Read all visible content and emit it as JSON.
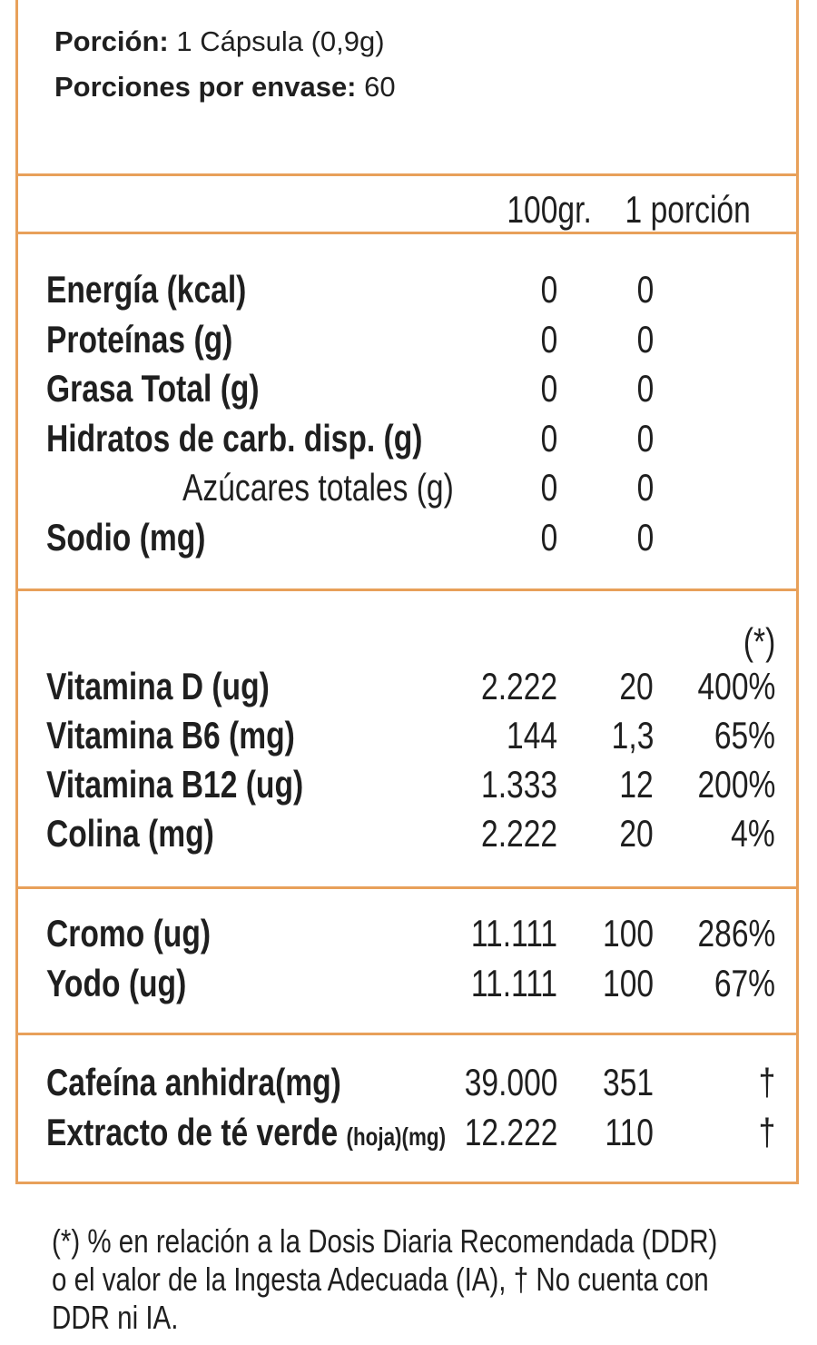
{
  "serving": {
    "portion_label": "Porción:",
    "portion_value": "1 Cápsula (0,9g)",
    "per_container_label": "Porciones por envase:",
    "per_container_value": "60"
  },
  "headers": {
    "col1": "100gr.",
    "col2": "1 porción",
    "col3": "(*)"
  },
  "macros": [
    {
      "label": "Energía (kcal)",
      "v100": "0",
      "vport": "0"
    },
    {
      "label": "Proteínas (g)",
      "v100": "0",
      "vport": "0"
    },
    {
      "label": "Grasa Total (g)",
      "v100": "0",
      "vport": "0"
    },
    {
      "label": "Hidratos de carb. disp. (g)",
      "v100": "0",
      "vport": "0"
    },
    {
      "label": "Azúcares totales (g)",
      "v100": "0",
      "vport": "0"
    },
    {
      "label": "Sodio (mg)",
      "v100": "0",
      "vport": "0"
    }
  ],
  "vitamins": [
    {
      "label": "Vitamina D (ug)",
      "v100": "2.222",
      "vport": "20",
      "pct": "400%"
    },
    {
      "label": "Vitamina B6 (mg)",
      "v100": "144",
      "vport": "1,3",
      "pct": "65%"
    },
    {
      "label": "Vitamina B12 (ug)",
      "v100": "1.333",
      "vport": "12",
      "pct": "200%"
    },
    {
      "label": "Colina (mg)",
      "v100": "2.222",
      "vport": "20",
      "pct": "4%"
    }
  ],
  "minerals": [
    {
      "label": "Cromo (ug)",
      "v100": "11.111",
      "vport": "100",
      "pct": "286%"
    },
    {
      "label": "Yodo (ug)",
      "v100": "11.111",
      "vport": "100",
      "pct": "67%"
    }
  ],
  "others": [
    {
      "label": "Cafeína anhidra(mg)",
      "label_small": "",
      "v100": "39.000",
      "vport": "351",
      "pct": "†"
    },
    {
      "label": "Extracto de té verde ",
      "label_small": "(hoja)(mg)",
      "v100": "12.222",
      "vport": "110",
      "pct": "†"
    }
  ],
  "footnote": {
    "line1": "(*) % en relación a la Dosis Diaria Recomendada (DDR)",
    "line2": "o el valor de la Ingesta Adecuada (IA), † No cuenta con",
    "line3": "DDR ni IA."
  },
  "colors": {
    "border": "#e8a05a",
    "text": "#1f1f1f"
  }
}
